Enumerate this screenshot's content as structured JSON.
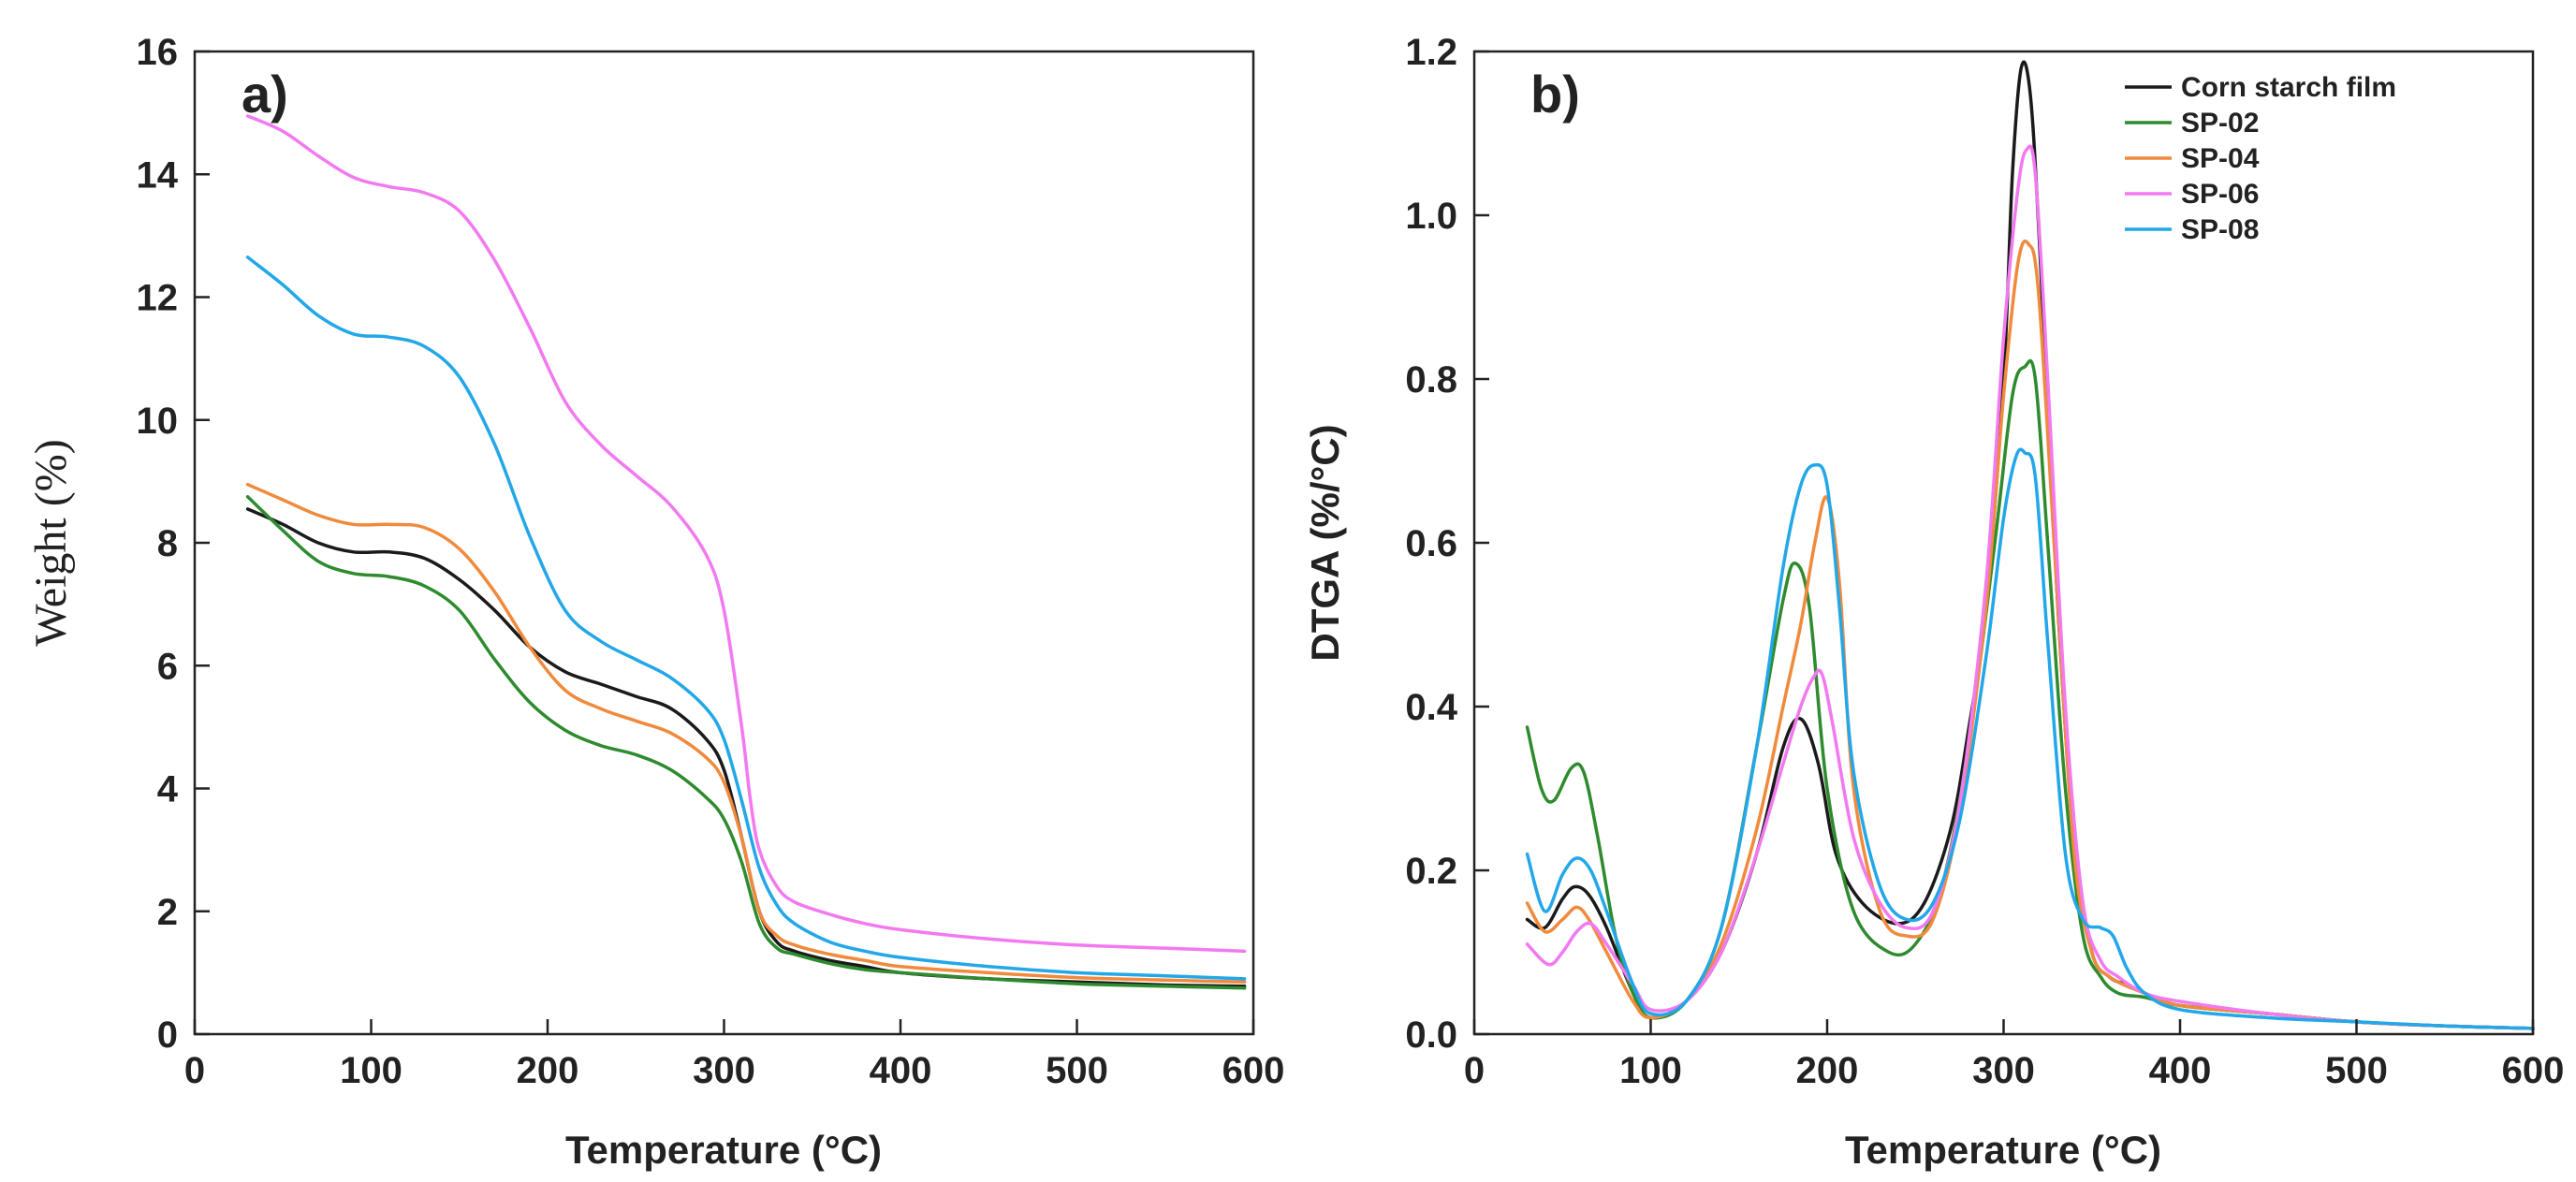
{
  "chart_data": [
    {
      "type": "line",
      "panel": "a)",
      "xlabel": "Temperature (°C)",
      "ylabel": "Weight (%)",
      "xlim": [
        0,
        600
      ],
      "ylim": [
        0,
        16
      ],
      "xticks": [
        0,
        100,
        200,
        300,
        400,
        500,
        600
      ],
      "yticks": [
        0,
        2,
        4,
        6,
        8,
        10,
        12,
        14,
        16
      ],
      "series": [
        {
          "name": "Corn starch film",
          "color": "#1a1a1a",
          "x": [
            30,
            50,
            70,
            90,
            110,
            130,
            150,
            170,
            190,
            210,
            230,
            250,
            270,
            290,
            300,
            310,
            320,
            330,
            340,
            360,
            380,
            400,
            450,
            500,
            550,
            595
          ],
          "y": [
            8.55,
            8.3,
            8.0,
            7.85,
            7.85,
            7.75,
            7.4,
            6.9,
            6.3,
            5.9,
            5.7,
            5.5,
            5.3,
            4.8,
            4.3,
            3.2,
            2.0,
            1.5,
            1.35,
            1.2,
            1.1,
            1.0,
            0.9,
            0.85,
            0.8,
            0.78
          ]
        },
        {
          "name": "SP-02",
          "color": "#2e8b2e",
          "x": [
            30,
            50,
            70,
            90,
            110,
            130,
            150,
            170,
            190,
            210,
            230,
            250,
            270,
            290,
            300,
            310,
            320,
            330,
            340,
            360,
            380,
            400,
            450,
            500,
            550,
            595
          ],
          "y": [
            8.75,
            8.2,
            7.7,
            7.5,
            7.45,
            7.3,
            6.9,
            6.1,
            5.4,
            4.95,
            4.7,
            4.55,
            4.3,
            3.85,
            3.5,
            2.8,
            1.8,
            1.4,
            1.3,
            1.15,
            1.05,
            1.0,
            0.9,
            0.82,
            0.78,
            0.75
          ]
        },
        {
          "name": "SP-04",
          "color": "#f08a3c",
          "x": [
            30,
            50,
            70,
            90,
            110,
            130,
            150,
            170,
            190,
            210,
            230,
            250,
            270,
            290,
            300,
            310,
            320,
            330,
            340,
            360,
            380,
            400,
            450,
            500,
            550,
            595
          ],
          "y": [
            8.95,
            8.7,
            8.45,
            8.3,
            8.3,
            8.25,
            7.9,
            7.2,
            6.3,
            5.6,
            5.3,
            5.1,
            4.9,
            4.5,
            4.1,
            3.2,
            2.0,
            1.6,
            1.45,
            1.3,
            1.2,
            1.1,
            1.0,
            0.92,
            0.88,
            0.85
          ]
        },
        {
          "name": "SP-06",
          "color": "#f279f0",
          "x": [
            30,
            50,
            70,
            90,
            110,
            130,
            150,
            170,
            190,
            210,
            230,
            250,
            270,
            290,
            300,
            310,
            315,
            320,
            330,
            340,
            360,
            380,
            400,
            450,
            500,
            550,
            595
          ],
          "y": [
            14.95,
            14.7,
            14.3,
            13.95,
            13.8,
            13.7,
            13.4,
            12.6,
            11.5,
            10.3,
            9.6,
            9.1,
            8.6,
            7.8,
            6.9,
            5.0,
            3.8,
            3.0,
            2.4,
            2.15,
            1.95,
            1.8,
            1.7,
            1.55,
            1.45,
            1.4,
            1.35
          ]
        },
        {
          "name": "SP-08",
          "color": "#22a7e8",
          "x": [
            30,
            50,
            70,
            90,
            110,
            130,
            150,
            170,
            190,
            210,
            230,
            250,
            270,
            290,
            300,
            310,
            320,
            330,
            340,
            360,
            380,
            400,
            450,
            500,
            550,
            595
          ],
          "y": [
            12.65,
            12.2,
            11.7,
            11.4,
            11.35,
            11.2,
            10.7,
            9.6,
            8.1,
            6.9,
            6.4,
            6.1,
            5.8,
            5.3,
            4.8,
            3.8,
            2.7,
            2.1,
            1.8,
            1.5,
            1.35,
            1.25,
            1.1,
            1.0,
            0.95,
            0.9
          ]
        }
      ]
    },
    {
      "type": "line",
      "panel": "b)",
      "xlabel": "Temperature (°C)",
      "ylabel": "DTGA (%/°C)",
      "xlim": [
        0,
        600
      ],
      "ylim": [
        0,
        1.2
      ],
      "xticks": [
        0,
        100,
        200,
        300,
        400,
        500,
        600
      ],
      "yticks": [
        0.0,
        0.2,
        0.4,
        0.6,
        0.8,
        1.0,
        1.2
      ],
      "legend_position": "top-right",
      "series": [
        {
          "name": "Corn starch film",
          "color": "#1a1a1a",
          "x": [
            30,
            40,
            50,
            57,
            65,
            75,
            90,
            100,
            120,
            140,
            160,
            175,
            185,
            195,
            205,
            220,
            240,
            255,
            270,
            280,
            290,
            300,
            305,
            310,
            315,
            320,
            330,
            340,
            350,
            360,
            370,
            380,
            400,
            450,
            500,
            550,
            600
          ],
          "y": [
            0.14,
            0.13,
            0.165,
            0.18,
            0.17,
            0.13,
            0.05,
            0.02,
            0.04,
            0.1,
            0.22,
            0.35,
            0.385,
            0.33,
            0.22,
            0.16,
            0.135,
            0.16,
            0.25,
            0.37,
            0.52,
            0.8,
            1.05,
            1.18,
            1.15,
            0.98,
            0.55,
            0.23,
            0.1,
            0.07,
            0.06,
            0.05,
            0.035,
            0.025,
            0.015,
            0.01,
            0.007
          ]
        },
        {
          "name": "SP-02",
          "color": "#2e8b2e",
          "x": [
            30,
            38,
            45,
            55,
            62,
            70,
            80,
            90,
            100,
            120,
            140,
            160,
            175,
            182,
            190,
            200,
            215,
            235,
            250,
            265,
            280,
            295,
            305,
            312,
            318,
            325,
            335,
            345,
            355,
            365,
            380,
            400,
            450,
            500,
            550,
            600
          ],
          "y": [
            0.375,
            0.3,
            0.285,
            0.325,
            0.32,
            0.24,
            0.12,
            0.05,
            0.02,
            0.04,
            0.13,
            0.35,
            0.53,
            0.575,
            0.52,
            0.3,
            0.15,
            0.1,
            0.11,
            0.18,
            0.35,
            0.6,
            0.78,
            0.815,
            0.8,
            0.6,
            0.3,
            0.12,
            0.07,
            0.05,
            0.045,
            0.035,
            0.025,
            0.015,
            0.01,
            0.007
          ]
        },
        {
          "name": "SP-04",
          "color": "#f08a3c",
          "x": [
            30,
            40,
            50,
            58,
            65,
            75,
            90,
            100,
            120,
            140,
            160,
            175,
            185,
            193,
            200,
            207,
            215,
            230,
            245,
            260,
            275,
            290,
            300,
            308,
            314,
            320,
            330,
            340,
            350,
            360,
            380,
            400,
            450,
            500,
            550,
            600
          ],
          "y": [
            0.16,
            0.125,
            0.14,
            0.155,
            0.14,
            0.1,
            0.04,
            0.02,
            0.04,
            0.11,
            0.25,
            0.4,
            0.5,
            0.6,
            0.655,
            0.55,
            0.3,
            0.15,
            0.12,
            0.14,
            0.27,
            0.52,
            0.78,
            0.94,
            0.965,
            0.9,
            0.55,
            0.22,
            0.1,
            0.07,
            0.05,
            0.035,
            0.025,
            0.015,
            0.01,
            0.007
          ]
        },
        {
          "name": "SP-06",
          "color": "#f279f0",
          "x": [
            30,
            42,
            50,
            58,
            66,
            75,
            90,
            100,
            120,
            140,
            160,
            175,
            185,
            192,
            197,
            203,
            215,
            230,
            245,
            260,
            275,
            290,
            300,
            308,
            313,
            318,
            325,
            335,
            345,
            355,
            365,
            380,
            400,
            450,
            500,
            550,
            600
          ],
          "y": [
            0.11,
            0.085,
            0.1,
            0.125,
            0.135,
            0.11,
            0.06,
            0.03,
            0.04,
            0.1,
            0.22,
            0.33,
            0.4,
            0.435,
            0.44,
            0.38,
            0.24,
            0.16,
            0.13,
            0.15,
            0.28,
            0.55,
            0.85,
            1.03,
            1.08,
            1.05,
            0.8,
            0.4,
            0.16,
            0.09,
            0.07,
            0.05,
            0.04,
            0.025,
            0.015,
            0.01,
            0.007
          ]
        },
        {
          "name": "SP-08",
          "color": "#22a7e8",
          "x": [
            30,
            40,
            50,
            58,
            66,
            75,
            90,
            100,
            120,
            140,
            160,
            175,
            185,
            193,
            200,
            207,
            215,
            230,
            245,
            260,
            275,
            290,
            300,
            307,
            312,
            318,
            325,
            335,
            345,
            355,
            362,
            370,
            380,
            400,
            450,
            500,
            550,
            600
          ],
          "y": [
            0.22,
            0.15,
            0.195,
            0.215,
            0.2,
            0.15,
            0.06,
            0.025,
            0.04,
            0.13,
            0.35,
            0.57,
            0.67,
            0.695,
            0.67,
            0.52,
            0.32,
            0.18,
            0.14,
            0.16,
            0.26,
            0.46,
            0.63,
            0.705,
            0.71,
            0.68,
            0.48,
            0.22,
            0.14,
            0.13,
            0.12,
            0.08,
            0.05,
            0.03,
            0.02,
            0.015,
            0.01,
            0.007
          ]
        }
      ]
    }
  ]
}
